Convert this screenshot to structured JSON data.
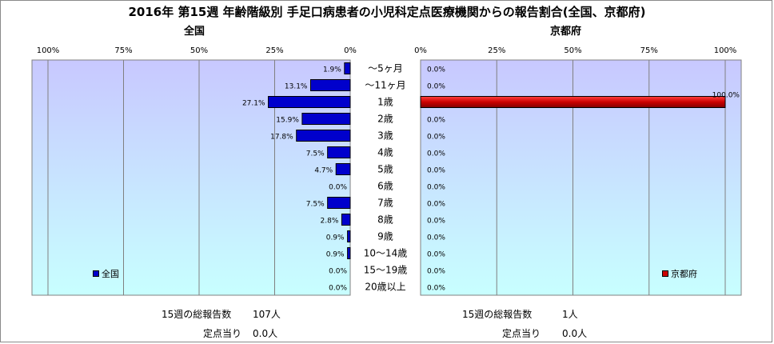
{
  "title": "2016年 第15週 年齢階級別 手足口病患者の小児科定点医療機関からの報告割合(全国、京都府)",
  "colors": {
    "national_bar": "#0000cc",
    "kyoto_bar": "#cc0000",
    "plot_bg_top": "#c8c8ff",
    "plot_bg_bottom": "#c8ffff",
    "grid": "#808080"
  },
  "chart_data": [
    {
      "type": "bar",
      "orientation": "horizontal",
      "direction": "right-to-left",
      "title": "全国",
      "xlim": [
        0,
        100
      ],
      "x_ticks": [
        "100%",
        "75%",
        "50%",
        "25%",
        "0%"
      ],
      "categories": [
        "～5ヶ月",
        "～11ヶ月",
        "1歳",
        "2歳",
        "3歳",
        "4歳",
        "5歳",
        "6歳",
        "7歳",
        "8歳",
        "9歳",
        "10～14歳",
        "15～19歳",
        "20歳以上"
      ],
      "series": [
        {
          "name": "全国",
          "values": [
            1.9,
            13.1,
            27.1,
            15.9,
            17.8,
            7.5,
            4.7,
            0.0,
            7.5,
            2.8,
            0.9,
            0.9,
            0.0,
            0.0
          ],
          "labels": [
            "1.9%",
            "13.1%",
            "27.1%",
            "15.9%",
            "17.8%",
            "7.5%",
            "4.7%",
            "0.0%",
            "7.5%",
            "2.8%",
            "0.9%",
            "0.9%",
            "0.0%",
            "0.0%"
          ]
        }
      ],
      "grid": true,
      "legend": "bottom-left"
    },
    {
      "type": "bar",
      "orientation": "horizontal",
      "direction": "left-to-right",
      "title": "京都府",
      "xlim": [
        0,
        100
      ],
      "x_ticks": [
        "0%",
        "25%",
        "50%",
        "75%",
        "100%"
      ],
      "categories": [
        "～5ヶ月",
        "～11ヶ月",
        "1歳",
        "2歳",
        "3歳",
        "4歳",
        "5歳",
        "6歳",
        "7歳",
        "8歳",
        "9歳",
        "10～14歳",
        "15～19歳",
        "20歳以上"
      ],
      "series": [
        {
          "name": "京都府",
          "values": [
            0.0,
            0.0,
            100.0,
            0.0,
            0.0,
            0.0,
            0.0,
            0.0,
            0.0,
            0.0,
            0.0,
            0.0,
            0.0,
            0.0
          ],
          "labels": [
            "0.0%",
            "0.0%",
            "100.0%",
            "0.0%",
            "0.0%",
            "0.0%",
            "0.0%",
            "0.0%",
            "0.0%",
            "0.0%",
            "0.0%",
            "0.0%",
            "0.0%",
            "0.0%"
          ]
        }
      ],
      "grid": true,
      "legend": "bottom-right"
    }
  ],
  "footer": {
    "national": {
      "reports_label": "15週の総報告数",
      "reports_value": "107人",
      "per_site_label": "定点当り",
      "per_site_value": "0.0人"
    },
    "kyoto": {
      "reports_label": "15週の総報告数",
      "reports_value": "1人",
      "per_site_label": "定点当り",
      "per_site_value": "0.0人"
    }
  }
}
